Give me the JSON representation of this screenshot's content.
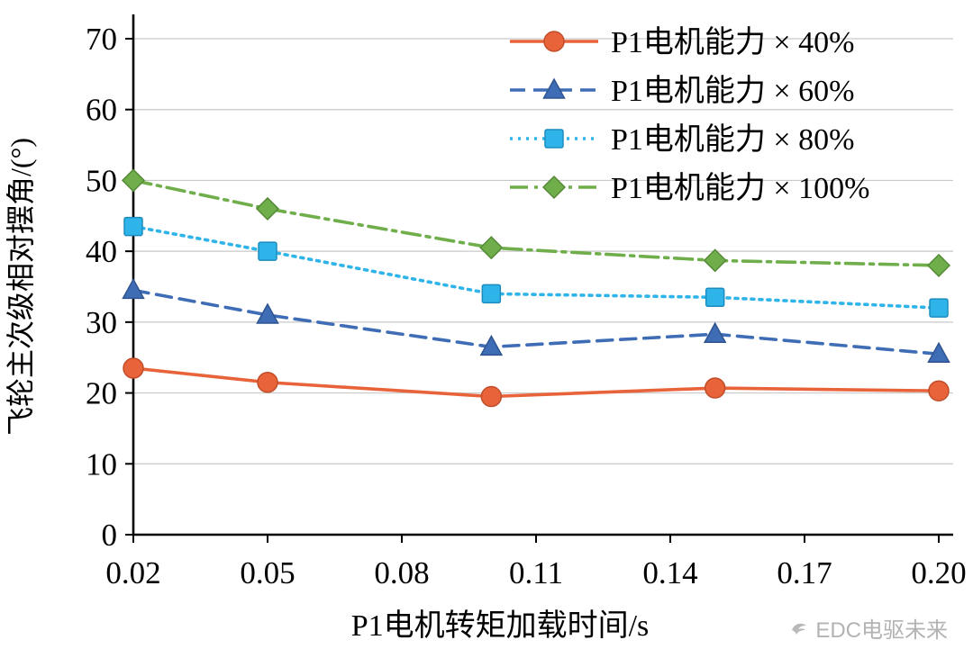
{
  "chart_data": {
    "type": "line",
    "title": "",
    "xlabel": "P1电机转矩加载时间/s",
    "ylabel": "飞轮主次级相对摆角/(°)",
    "x": [
      0.02,
      0.05,
      0.1,
      0.15,
      0.2
    ],
    "xlim": [
      0.02,
      0.2
    ],
    "ylim": [
      0,
      70
    ],
    "x_ticks": [
      "0.02",
      "0.05",
      "0.08",
      "0.11",
      "0.14",
      "0.17",
      "0.20"
    ],
    "x_tick_values": [
      0.02,
      0.05,
      0.08,
      0.11,
      0.14,
      0.17,
      0.2
    ],
    "y_ticks": [
      0,
      10,
      20,
      30,
      40,
      50,
      60,
      70
    ],
    "grid": true,
    "legend_position": "top-right-inside",
    "series": [
      {
        "name": "P1电机能力 × 40%",
        "color": "#e8633a",
        "edge": "#c14e2a",
        "marker": "circle",
        "line_style": "solid",
        "values": [
          23.5,
          21.5,
          19.5,
          20.7,
          20.3
        ]
      },
      {
        "name": "P1电机能力 × 60%",
        "color": "#3f6db5",
        "edge": "#2f5490",
        "marker": "triangle",
        "line_style": "dashed",
        "values": [
          34.5,
          31.0,
          26.5,
          28.3,
          25.5
        ]
      },
      {
        "name": "P1电机能力 × 80%",
        "color": "#2fb4e9",
        "edge": "#1d8cbd",
        "marker": "square",
        "line_style": "dotted",
        "values": [
          43.5,
          40.0,
          34.0,
          33.5,
          32.0
        ]
      },
      {
        "name": "P1电机能力 × 100%",
        "color": "#6fae4b",
        "edge": "#558a37",
        "marker": "diamond",
        "line_style": "dashdot",
        "values": [
          50.0,
          46.0,
          40.5,
          38.7,
          38.0
        ]
      }
    ]
  },
  "watermark": {
    "text": "EDC电驱未来",
    "icon": "bird-icon"
  }
}
